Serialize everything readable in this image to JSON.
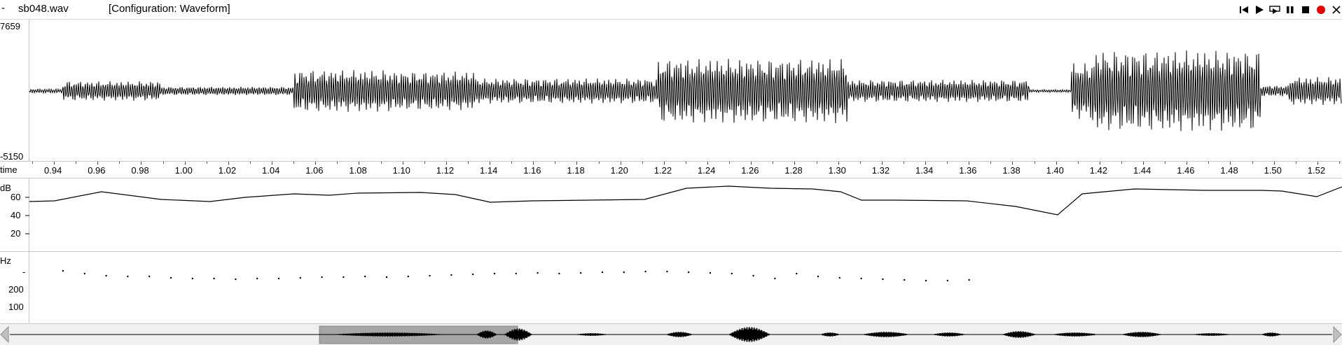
{
  "titlebar": {
    "menu_glyph": "-",
    "filename": "sb048.wav",
    "configuration": "[Configuration: Waveform]",
    "controls": [
      "skip-to-start-icon",
      "play-icon",
      "play-selection-icon",
      "pause-icon",
      "stop-icon",
      "record-icon",
      "close-icon"
    ]
  },
  "waveform": {
    "y_max": "7659",
    "y_min": "-5150"
  },
  "time_axis": {
    "label": "time",
    "ticks": [
      "0.94",
      "0.96",
      "0.98",
      "1.00",
      "1.02",
      "1.04",
      "1.06",
      "1.08",
      "1.10",
      "1.12",
      "1.14",
      "1.16",
      "1.18",
      "1.20",
      "1.22",
      "1.24",
      "1.26",
      "1.28",
      "1.30",
      "1.32",
      "1.34",
      "1.36",
      "1.38",
      "1.40",
      "1.42",
      "1.44",
      "1.46",
      "1.48",
      "1.50",
      "1.52"
    ]
  },
  "intensity": {
    "unit": "dB",
    "ticks": [
      "60",
      "40",
      "20"
    ]
  },
  "pitch": {
    "unit": "Hz",
    "ticks": [
      "-",
      "200",
      "100"
    ]
  },
  "colors": {
    "record": "#e00000",
    "selection": "#a0a0a0",
    "trace": "#000000"
  }
}
